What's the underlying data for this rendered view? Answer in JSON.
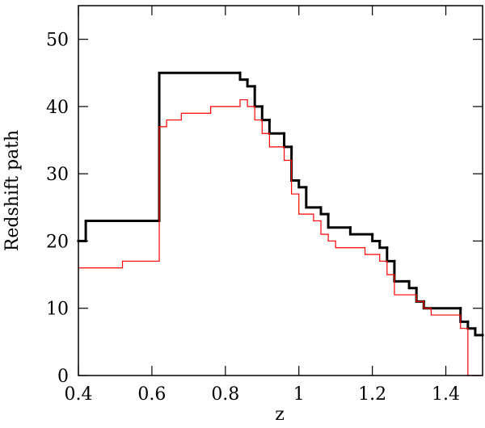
{
  "chart_data": {
    "type": "step",
    "x_label": "z",
    "y_label": "Redshift path",
    "xlim": [
      0.4,
      1.5
    ],
    "ylim": [
      0,
      55
    ],
    "xticks": [
      0.4,
      0.6,
      0.8,
      1,
      1.2,
      1.4
    ],
    "yticks": [
      0,
      10,
      20,
      30,
      40,
      50
    ],
    "series": [
      {
        "color": "#000000",
        "bins": [
          0.4,
          0.42,
          0.62,
          0.84,
          0.86,
          0.88,
          0.9,
          0.92,
          0.96,
          0.98,
          1.0,
          1.02,
          1.06,
          1.08,
          1.14,
          1.2,
          1.22,
          1.24,
          1.26,
          1.3,
          1.32,
          1.34,
          1.44,
          1.46,
          1.48,
          1.5
        ],
        "values": [
          20,
          23,
          45,
          44,
          43,
          40,
          38,
          36,
          34,
          29,
          28,
          25,
          24,
          22,
          21,
          20,
          19,
          17,
          14,
          13,
          11,
          10,
          8,
          7,
          6
        ]
      },
      {
        "color": "#ff0000",
        "bins": [
          0.4,
          0.52,
          0.62,
          0.64,
          0.68,
          0.76,
          0.84,
          0.86,
          0.88,
          0.9,
          0.92,
          0.96,
          0.98,
          1.0,
          1.04,
          1.06,
          1.08,
          1.1,
          1.18,
          1.22,
          1.24,
          1.26,
          1.32,
          1.34,
          1.36,
          1.44,
          1.46,
          1.5
        ],
        "values": [
          16,
          17,
          37,
          38,
          39,
          40,
          41,
          40,
          38,
          36,
          34,
          32,
          27,
          24,
          23,
          21,
          20,
          19,
          18,
          17,
          15,
          12,
          11,
          10,
          9,
          7,
          0
        ]
      }
    ]
  }
}
